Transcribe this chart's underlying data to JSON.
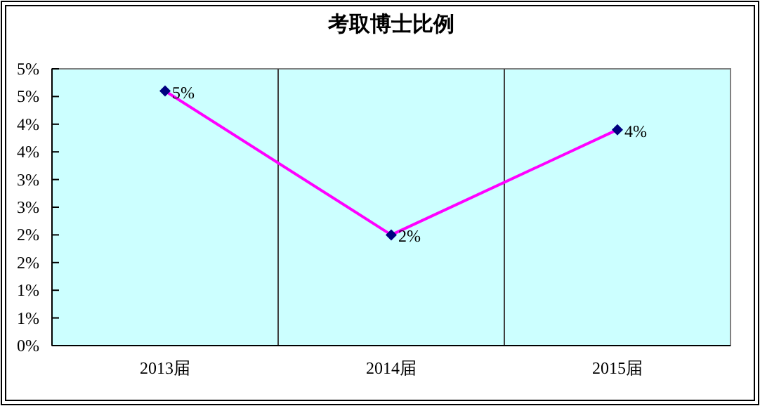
{
  "chart_data": {
    "type": "line",
    "title": "考取博士比例",
    "categories": [
      "2013届",
      "2014届",
      "2015届"
    ],
    "series": [
      {
        "color": "#ff00ff",
        "values": [
          4.6,
          2.0,
          3.9
        ],
        "value_labels": [
          "5%",
          "2%",
          "4%"
        ]
      }
    ],
    "ylim": [
      0,
      5
    ],
    "yticks": [
      {
        "value": 0,
        "label": "0%"
      },
      {
        "value": 0.5,
        "label": "1%"
      },
      {
        "value": 1,
        "label": "1%"
      },
      {
        "value": 1.5,
        "label": "2%"
      },
      {
        "value": 2,
        "label": "2%"
      },
      {
        "value": 2.5,
        "label": "3%"
      },
      {
        "value": 3,
        "label": "3%"
      },
      {
        "value": 3.5,
        "label": "4%"
      },
      {
        "value": 4,
        "label": "4%"
      },
      {
        "value": 4.5,
        "label": "5%"
      },
      {
        "value": 5,
        "label": "5%"
      }
    ],
    "grid": "x",
    "marker": "diamond",
    "line_style": "solid"
  }
}
